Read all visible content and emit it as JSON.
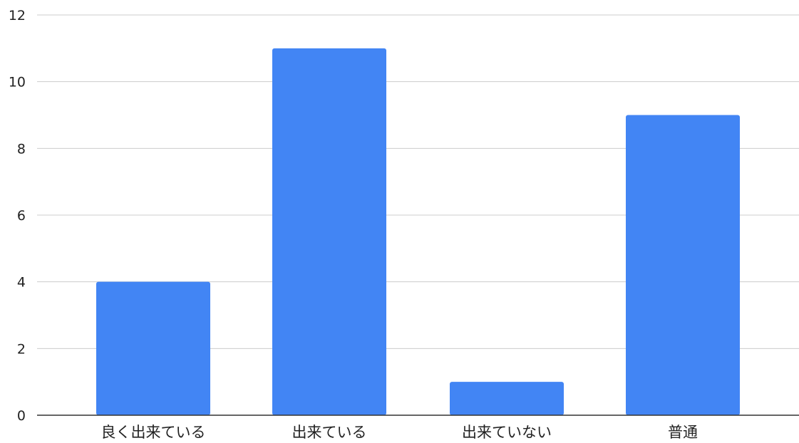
{
  "chart_data": {
    "type": "bar",
    "title": "",
    "xlabel": "",
    "ylabel": "",
    "categories": [
      "良く出来ている",
      "出来ている",
      "出来ていない",
      "普通"
    ],
    "values": [
      4,
      11,
      1,
      9
    ],
    "ylim": [
      0,
      12
    ],
    "yticks": [
      0,
      2,
      4,
      6,
      8,
      10,
      12
    ],
    "grid": true,
    "legend": "none",
    "bar_color": "#4285f4"
  }
}
